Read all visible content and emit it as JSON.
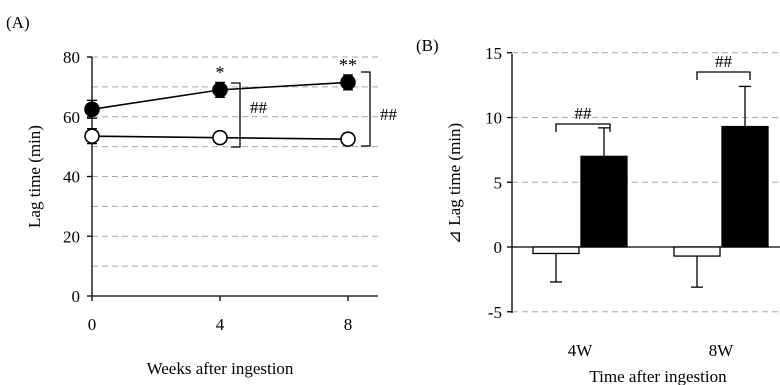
{
  "chart_data": [
    {
      "type": "line",
      "panel_label": "(A)",
      "xlabel": "Weeks after ingestion",
      "ylabel": "Lag time (min)",
      "x": [
        0,
        4,
        8
      ],
      "xticks": [
        "0",
        "4",
        "8"
      ],
      "yticks": [
        "0",
        "20",
        "40",
        "60",
        "80"
      ],
      "ylim": [
        0,
        80
      ],
      "grid": "dashed horizontal every 10",
      "series": [
        {
          "marker": "filled-circle",
          "values": [
            62.5,
            69,
            71.5
          ],
          "errors": [
            3,
            2.5,
            2.5
          ],
          "annotations": [
            "",
            "*",
            "**"
          ]
        },
        {
          "marker": "open-circle",
          "values": [
            53.5,
            53,
            52.5
          ],
          "errors": [
            2.5,
            1.5,
            2
          ],
          "annotations": [
            "",
            "",
            ""
          ]
        }
      ],
      "comparisons": [
        {
          "at_x": 4,
          "label": "##"
        },
        {
          "at_x": 8,
          "label": "##"
        }
      ]
    },
    {
      "type": "bar",
      "panel_label": "(B)",
      "xlabel": "Time after ingestion",
      "ylabel": "⊿ Lag time (min)",
      "categories": [
        "4W",
        "8W"
      ],
      "yticks": [
        "-5",
        "0",
        "5",
        "10",
        "15"
      ],
      "ylim": [
        -5,
        15
      ],
      "grid": "dashed horizontal every 5",
      "series": [
        {
          "fill": "white",
          "values": [
            -0.5,
            -0.7
          ],
          "errors": [
            2.2,
            2.4
          ]
        },
        {
          "fill": "black",
          "values": [
            7.0,
            9.3
          ],
          "errors": [
            2.2,
            3.1
          ]
        }
      ],
      "comparisons": [
        {
          "category": "4W",
          "label": "##"
        },
        {
          "category": "8W",
          "label": "##"
        }
      ]
    }
  ]
}
